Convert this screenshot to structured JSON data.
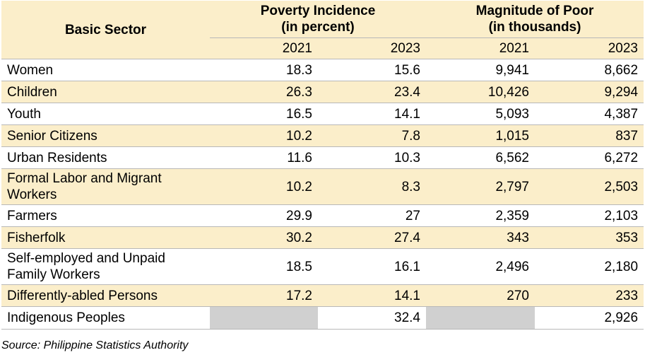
{
  "header": {
    "sector_label": "Basic Sector",
    "group1_line1": "Poverty Incidence",
    "group1_line2": "(in percent)",
    "group2_line1": "Magnitude of Poor",
    "group2_line2": "(in thousands)",
    "years": [
      "2021",
      "2023",
      "2021",
      "2023"
    ]
  },
  "rows": [
    {
      "sector": "Women",
      "pi_2021": "18.3",
      "pi_2023": "15.6",
      "mp_2021": "9,941",
      "mp_2023": "8,662"
    },
    {
      "sector": "Children",
      "pi_2021": "26.3",
      "pi_2023": "23.4",
      "mp_2021": "10,426",
      "mp_2023": "9,294"
    },
    {
      "sector": "Youth",
      "pi_2021": "16.5",
      "pi_2023": "14.1",
      "mp_2021": "5,093",
      "mp_2023": "4,387"
    },
    {
      "sector": "Senior Citizens",
      "pi_2021": "10.2",
      "pi_2023": "7.8",
      "mp_2021": "1,015",
      "mp_2023": "837"
    },
    {
      "sector": "Urban Residents",
      "pi_2021": "11.6",
      "pi_2023": "10.3",
      "mp_2021": "6,562",
      "mp_2023": "6,272"
    },
    {
      "sector": "Formal Labor and Migrant Workers",
      "pi_2021": "10.2",
      "pi_2023": "8.3",
      "mp_2021": "2,797",
      "mp_2023": "2,503"
    },
    {
      "sector": "Farmers",
      "pi_2021": "29.9",
      "pi_2023": "27",
      "mp_2021": "2,359",
      "mp_2023": "2,103"
    },
    {
      "sector": "Fisherfolk",
      "pi_2021": "30.2",
      "pi_2023": "27.4",
      "mp_2021": "343",
      "mp_2023": "353"
    },
    {
      "sector": "Self-employed and Unpaid Family Workers",
      "pi_2021": "18.5",
      "pi_2023": "16.1",
      "mp_2021": "2,496",
      "mp_2023": "2,180"
    },
    {
      "sector": "Differently-abled Persons",
      "pi_2021": "17.2",
      "pi_2023": "14.1",
      "mp_2021": "270",
      "mp_2023": "233"
    },
    {
      "sector": "Indigenous Peoples",
      "pi_2021": "",
      "pi_2023": "32.4",
      "mp_2021": "",
      "mp_2023": "2,926"
    }
  ],
  "source": "Source: Philippine Statistics Authority",
  "colors": {
    "band": "#fbeeca",
    "not_available": "#d0d0d0",
    "rule": "#b8b8b8"
  }
}
